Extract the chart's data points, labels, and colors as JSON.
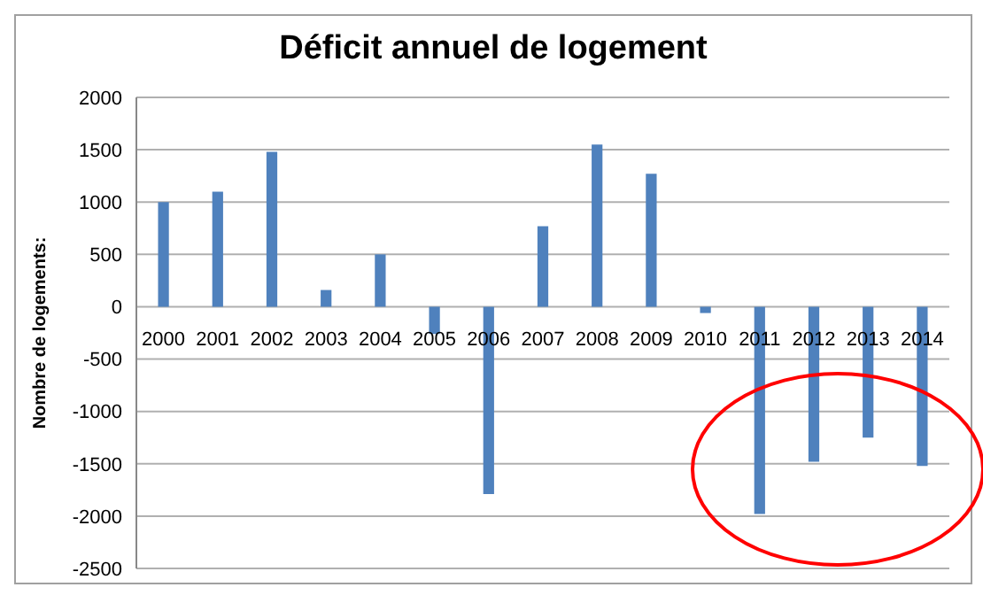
{
  "chart_data": {
    "type": "bar",
    "title": "Déficit annuel de logement",
    "ylabel": "Nombre de logements:",
    "categories": [
      "2000",
      "2001",
      "2002",
      "2003",
      "2004",
      "2005",
      "2006",
      "2007",
      "2008",
      "2009",
      "2010",
      "2011",
      "2012",
      "2013",
      "2014"
    ],
    "values": [
      1000,
      1100,
      1480,
      160,
      500,
      -260,
      -1790,
      770,
      1550,
      1270,
      -60,
      -1980,
      -1480,
      -1250,
      -1520
    ],
    "color": "#4f81bd",
    "ylim": [
      -2500,
      2000
    ],
    "yticks": [
      -2500,
      -2000,
      -1500,
      -1000,
      -500,
      0,
      500,
      1000,
      1500,
      2000
    ],
    "grid": "y"
  }
}
